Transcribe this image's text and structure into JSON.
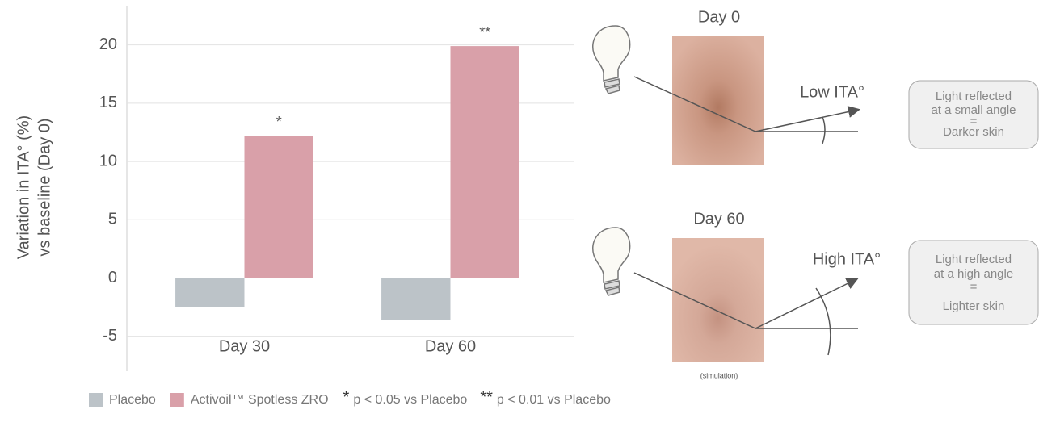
{
  "chart_data": {
    "type": "bar",
    "y_label": [
      "Variation in ITA° (%)",
      "vs baseline (Day 0)"
    ],
    "categories": [
      "Day 30",
      "Day 60"
    ],
    "series": [
      {
        "name": "Placebo",
        "color": "#bcc3c8",
        "values": [
          -2.5,
          -3.6
        ]
      },
      {
        "name": "Activoil™ Spotless ZRO",
        "color": "#d9a0a9",
        "values": [
          12.2,
          19.9
        ],
        "annotations": [
          "*",
          "**"
        ]
      }
    ],
    "ylim": [
      -8,
      23.3
    ],
    "yticks": [
      -5,
      0,
      5,
      10,
      15,
      20
    ],
    "grid": true,
    "footnotes": [
      {
        "symbol": "*",
        "text": "p < 0.05 vs Placebo"
      },
      {
        "symbol": "**",
        "text": "p < 0.01 vs Placebo"
      }
    ]
  },
  "illustration": {
    "panels": [
      {
        "title": "Day 0",
        "label": "Low ITA°",
        "box": [
          "Light reflected",
          "at a small angle",
          "=",
          "Darker skin"
        ]
      },
      {
        "title": "Day 60",
        "label": "High ITA°",
        "box": [
          "Light reflected",
          "at a high angle",
          "=",
          "Lighter skin"
        ]
      }
    ],
    "note": "(simulation)"
  }
}
